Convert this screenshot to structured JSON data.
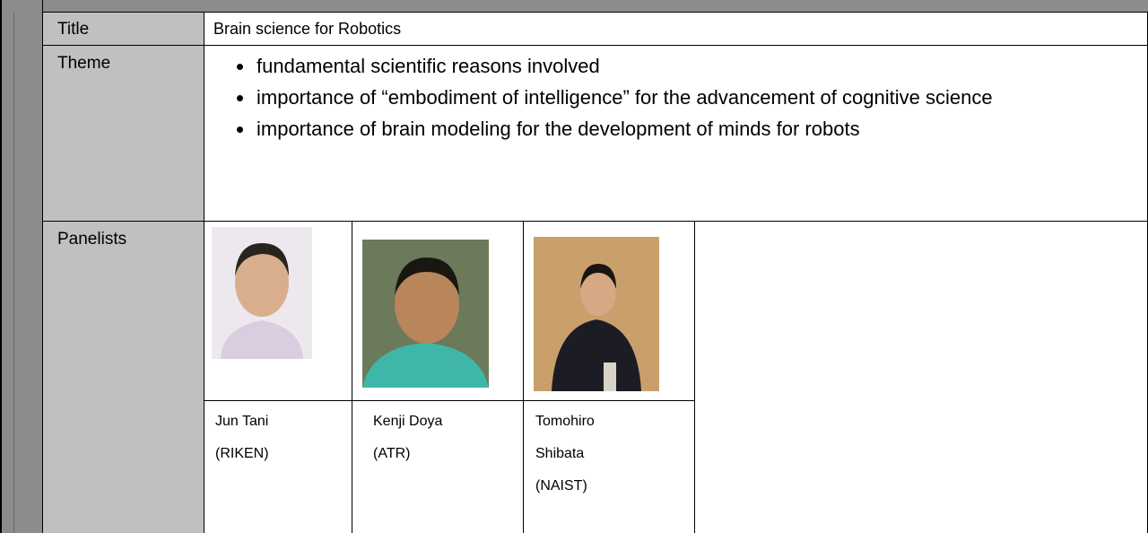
{
  "table": {
    "rows": [
      {
        "label": "Title",
        "value": "Brain science for Robotics"
      },
      {
        "label": "Theme",
        "items": [
          "fundamental scientific reasons involved",
          "importance of “embodiment of intelligence” for the advancement of   cognitive science",
          "importance of brain modeling for the development of minds for robots"
        ]
      },
      {
        "label": "Panelists",
        "panelists": [
          {
            "name": "Jun Tani",
            "affiliation": "(RIKEN)"
          },
          {
            "name": "Kenji Doya",
            "affiliation": "(ATR)"
          },
          {
            "name": "Tomohiro Shibata",
            "affiliation": "(NAIST)"
          }
        ]
      }
    ]
  }
}
